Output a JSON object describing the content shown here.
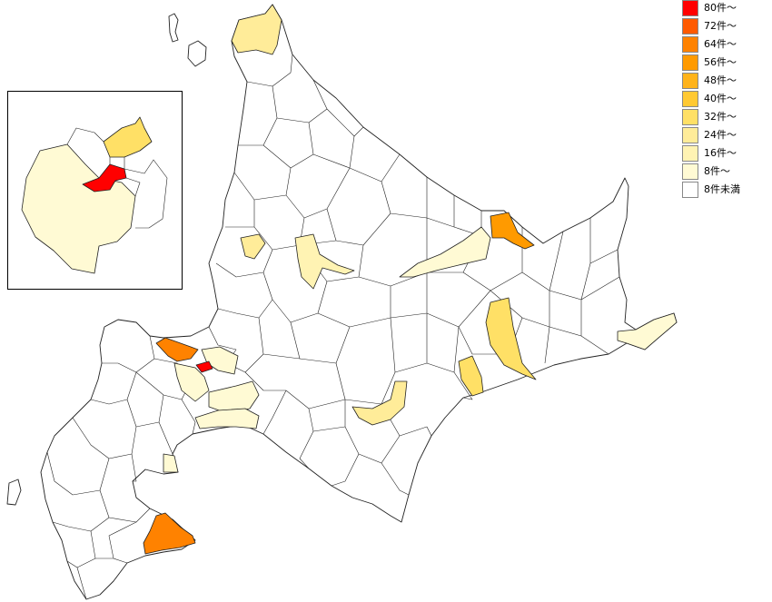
{
  "legend": {
    "items": [
      {
        "label": "80件～",
        "color": "#ff0000"
      },
      {
        "label": "72件～",
        "color": "#ff5a00"
      },
      {
        "label": "64件～",
        "color": "#ff8200"
      },
      {
        "label": "56件～",
        "color": "#ff9a00"
      },
      {
        "label": "48件～",
        "color": "#ffb31a"
      },
      {
        "label": "40件～",
        "color": "#ffc933"
      },
      {
        "label": "32件～",
        "color": "#ffe066"
      },
      {
        "label": "24件～",
        "color": "#ffec99"
      },
      {
        "label": "16件～",
        "color": "#fff3b3"
      },
      {
        "label": "8件～",
        "color": "#fffad4"
      },
      {
        "label": "8件未満",
        "color": "#ffffff"
      }
    ]
  },
  "map": {
    "region": "hokkaido-municipalities",
    "inset_region": "sapporo-area",
    "highlight_colors": {
      "sapporo": "#ff0000",
      "otaru": "#ff8200",
      "hakodate": "#ff8200",
      "kitami": "#ff9a00",
      "obihiro": "#ffe066",
      "kushiro": "#ffec99",
      "asahikawa": "#fff3b3",
      "ebetsu": "#fffad4",
      "kitahiroshima": "#fffad4",
      "eniwa": "#fffad4",
      "chitose": "#fffad4",
      "tomakomai": "#fffad4",
      "wakkanai": "#ffec99",
      "rumoi": "#ffec99",
      "nemuro": "#fffad4",
      "yubetsu": "#fffad4",
      "obihiro-south": "#ffe066",
      "nayoro-area": "#fffad4",
      "ishikari": "#fffad4",
      "muroran": "#fffad4",
      "sapporo-inset-north": "#ffe066",
      "sapporo-inset-south": "#fffad4"
    }
  }
}
